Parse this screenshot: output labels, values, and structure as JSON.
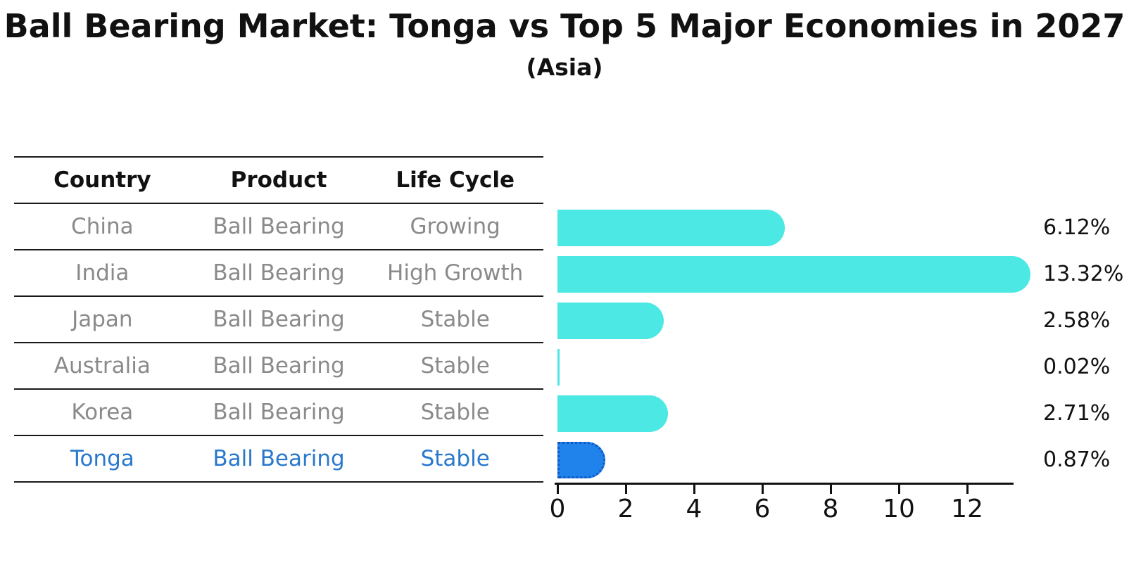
{
  "title": "Ball Bearing Market: Tonga vs Top 5 Major Economies in 2027",
  "subtitle": "(Asia)",
  "table": {
    "headers": [
      "Country",
      "Product",
      "Life Cycle"
    ],
    "rows": [
      {
        "country": "China",
        "product": "Ball Bearing",
        "life_cycle": "Growing",
        "highlight": false
      },
      {
        "country": "India",
        "product": "Ball Bearing",
        "life_cycle": "High Growth",
        "highlight": false
      },
      {
        "country": "Japan",
        "product": "Ball Bearing",
        "life_cycle": "Stable",
        "highlight": false
      },
      {
        "country": "Australia",
        "product": "Ball Bearing",
        "life_cycle": "Stable",
        "highlight": false
      },
      {
        "country": "Korea",
        "product": "Ball Bearing",
        "life_cycle": "Stable",
        "highlight": false
      },
      {
        "country": "Tonga",
        "product": "Ball Bearing",
        "life_cycle": "Stable",
        "highlight": true
      }
    ]
  },
  "chart_data": {
    "type": "bar",
    "orientation": "horizontal",
    "title": "Ball Bearing Market: Tonga vs Top 5 Major Economies in 2027",
    "subtitle": "(Asia)",
    "categories": [
      "China",
      "India",
      "Japan",
      "Australia",
      "Korea",
      "Tonga"
    ],
    "values": [
      6.12,
      13.32,
      2.58,
      0.02,
      2.71,
      0.87
    ],
    "value_labels": [
      "6.12%",
      "13.32%",
      "2.58%",
      "0.02%",
      "2.71%",
      "0.87%"
    ],
    "xlabel": "",
    "ylabel": "",
    "xlim": [
      0,
      13.4
    ],
    "x_ticks": [
      0,
      2,
      4,
      6,
      8,
      10,
      12
    ],
    "grid": false,
    "legend": false,
    "highlight_index": 5
  },
  "colors": {
    "bar": "#4be8e4",
    "highlight_bar": "#2082eb",
    "highlight_bar_border": "#1058c4",
    "highlight_text": "#2878ce",
    "table_text": "#8a8a8a",
    "axis_text": "#111111"
  }
}
